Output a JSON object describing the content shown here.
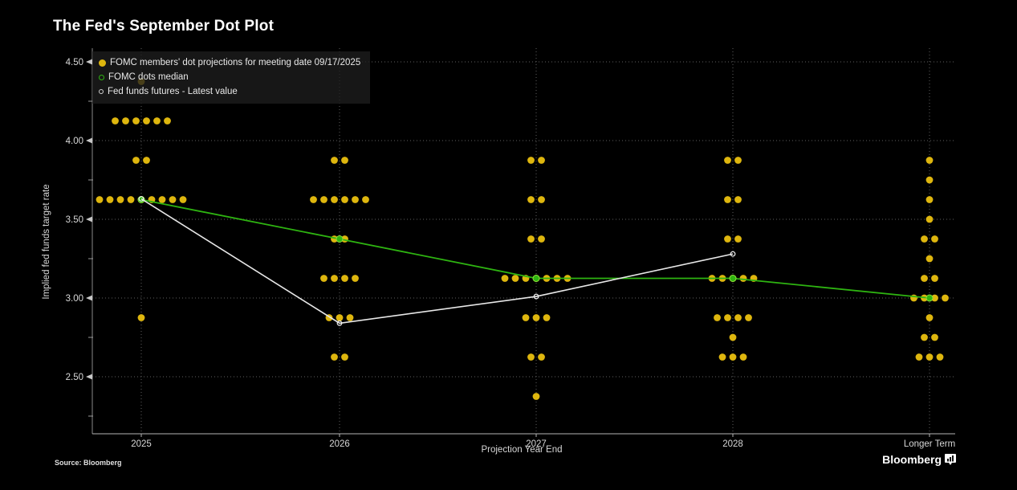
{
  "title": "The Fed's September Dot Plot",
  "source": "Source: Bloomberg",
  "footer": {
    "wordmark": "Bloomberg"
  },
  "colors": {
    "background": "#000000",
    "dots": "#deb60e",
    "median_line": "#2eb411",
    "median_marker_edge": "#8ce03c",
    "futures_line": "#e8e8e8",
    "grid": "#5f5f5f",
    "axis_text": "#d8d8d8"
  },
  "legend": [
    {
      "label": "FOMC members' dot projections for meeting date 09/17/2025",
      "marker": "filled-yellow-dot",
      "color": "#deb60e"
    },
    {
      "label": "FOMC dots median",
      "marker": "green-open-circle",
      "color": "#2eb411"
    },
    {
      "label": "Fed funds futures - Latest value",
      "marker": "white-open-circle",
      "color": "#cfcfcf"
    }
  ],
  "chart_data": {
    "type": "scatter",
    "title": "The Fed's September Dot Plot",
    "xlabel": "Projection Year End",
    "ylabel": "Implied fed funds target rate",
    "categories": [
      "2025",
      "2026",
      "2027",
      "2028",
      "Longer Term"
    ],
    "ylim": [
      2.15,
      4.55
    ],
    "yticks_major": [
      2.5,
      3.0,
      3.5,
      4.0,
      4.5
    ],
    "yticks_minor": [
      2.25,
      2.75,
      3.25,
      3.75,
      4.25
    ],
    "grid": "dotted horizontal and vertical",
    "legend_position": "top-left",
    "series": [
      {
        "name": "FOMC members' dot projections for meeting date 09/17/2025",
        "type": "dot-columns",
        "color": "#deb60e",
        "dots": [
          {
            "category": "2025",
            "counts": {
              "4.375": 1,
              "4.125": 6,
              "3.875": 2,
              "3.625": 9,
              "2.875": 1
            }
          },
          {
            "category": "2026",
            "counts": {
              "3.875": 2,
              "3.625": 6,
              "3.375": 2,
              "3.125": 4,
              "2.875": 3,
              "2.625": 2
            }
          },
          {
            "category": "2027",
            "counts": {
              "3.875": 2,
              "3.625": 2,
              "3.375": 2,
              "3.125": 7,
              "2.875": 3,
              "2.625": 2,
              "2.375": 1
            }
          },
          {
            "category": "2028",
            "counts": {
              "3.875": 2,
              "3.625": 2,
              "3.375": 2,
              "3.125": 5,
              "2.875": 4,
              "2.75": 1,
              "2.625": 3
            }
          },
          {
            "category": "Longer Term",
            "counts": {
              "3.875": 1,
              "3.75": 1,
              "3.625": 1,
              "3.5": 1,
              "3.375": 2,
              "3.25": 1,
              "3.125": 2,
              "3.0": 4,
              "2.875": 1,
              "2.75": 2,
              "2.625": 3
            }
          }
        ]
      },
      {
        "name": "FOMC dots median",
        "type": "line-with-circle-markers",
        "color": "#2eb411",
        "values": [
          3.625,
          3.375,
          3.125,
          3.125,
          3.0
        ]
      },
      {
        "name": "Fed funds futures - Latest value",
        "type": "line-with-open-circle-markers",
        "color": "#e8e8e8",
        "values": [
          3.63,
          2.84,
          3.01,
          3.28,
          null
        ]
      }
    ]
  }
}
